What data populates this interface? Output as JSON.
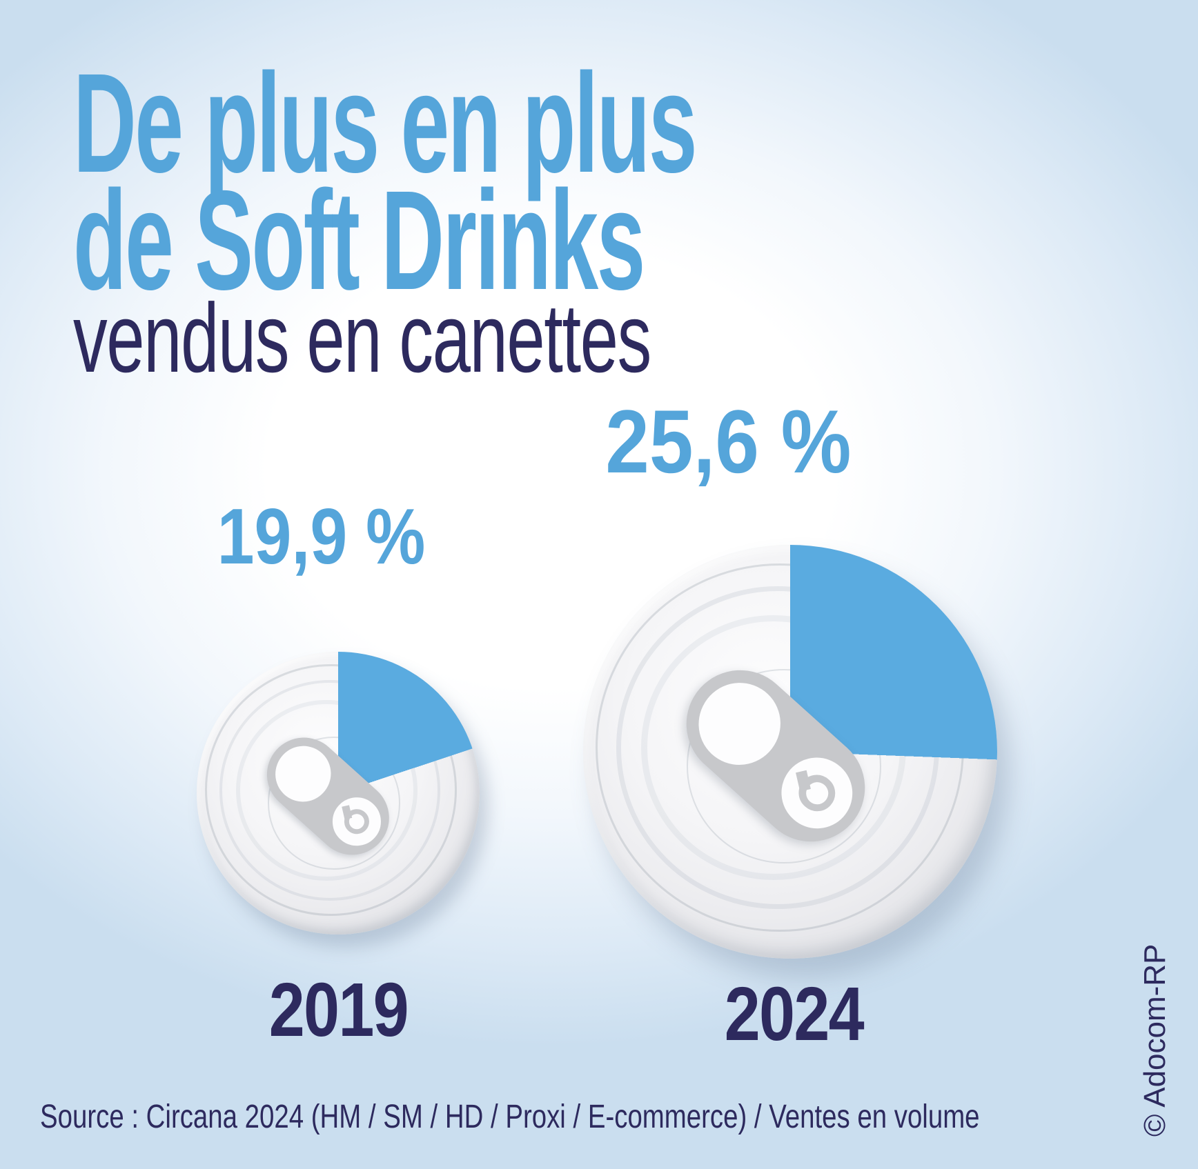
{
  "title": {
    "line1": "De plus en plus",
    "line2": "de Soft Drinks",
    "line3": "vendus en canettes"
  },
  "chart_data": {
    "type": "pie",
    "title": "De plus en plus de Soft Drinks vendus en canettes",
    "categories": [
      "2019",
      "2024"
    ],
    "values_pct": [
      19.9,
      25.6
    ],
    "pies": [
      {
        "year": "2019",
        "share_in_cans_pct": 19.9,
        "label": "19,9 %",
        "other_pct": 80.1
      },
      {
        "year": "2024",
        "share_in_cans_pct": 25.6,
        "label": "25,6 %",
        "other_pct": 74.4
      }
    ],
    "start_angle_deg": 0,
    "direction": "clockwise",
    "legend_position": "none",
    "wedge_color": "#5aabe0",
    "source": "Source : Circana 2024 (HM / SM / HD / Proxi / E-commerce) / Ventes en volume"
  },
  "credit": "© Adocom-RP",
  "colors": {
    "accent_blue": "#55a5da",
    "wedge_blue": "#5aabe0",
    "navy": "#2d2a5e",
    "bg_edge": "#cadeef",
    "bg_center": "#ffffff",
    "can_rim": "#c9cacd",
    "can_face": "#f2f2f4",
    "tab_gray": "#c7c8cb"
  }
}
